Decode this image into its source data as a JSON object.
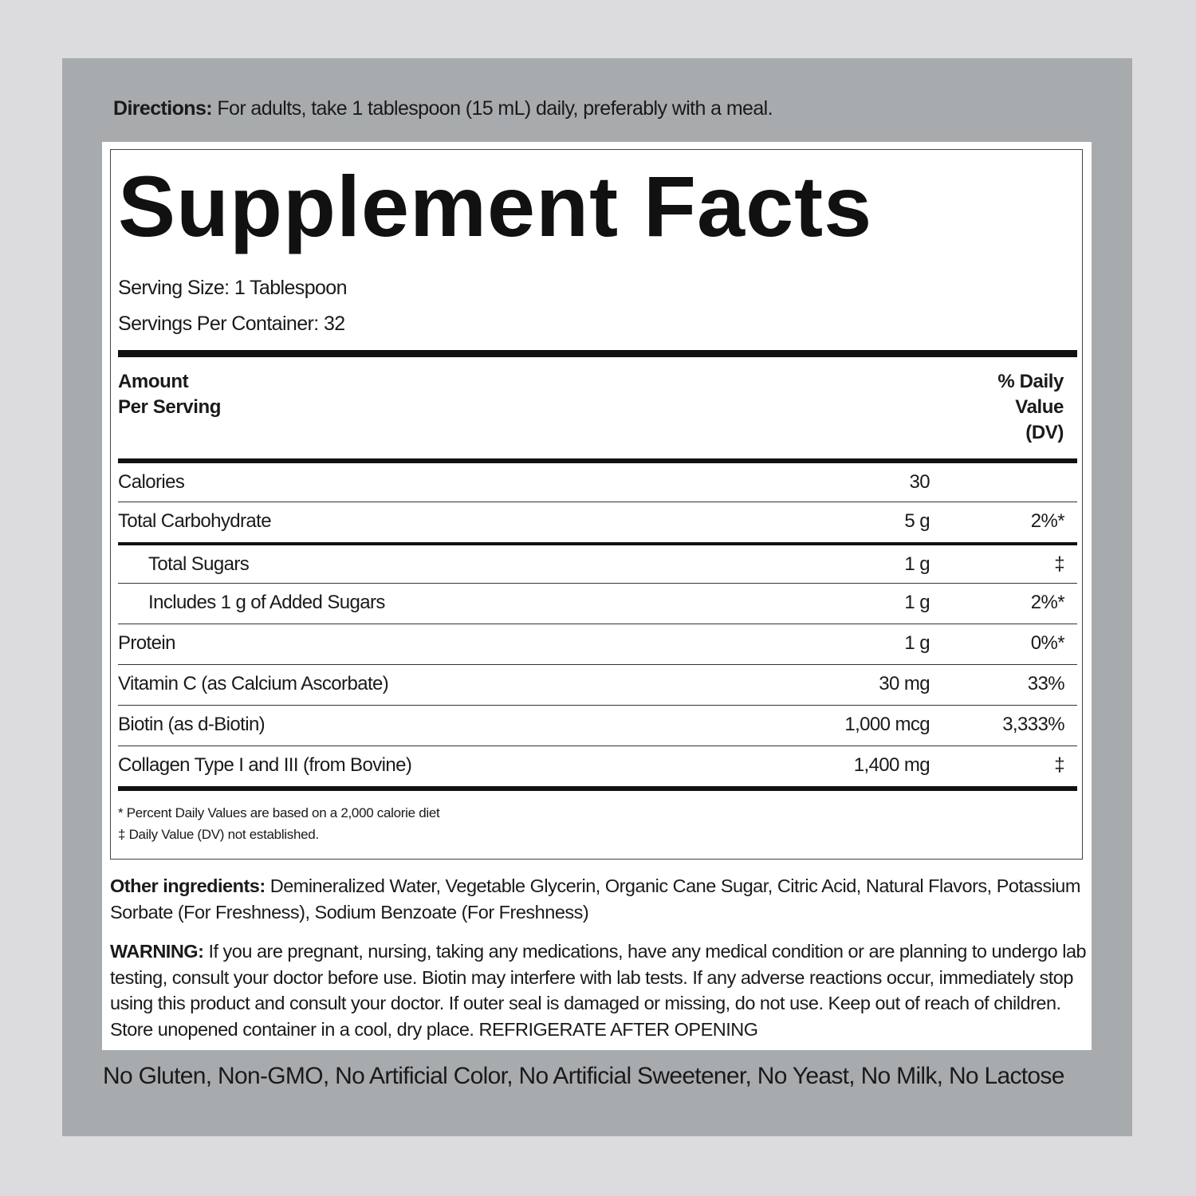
{
  "directions": {
    "label": "Directions:",
    "text": "For adults, take 1 tablespoon (15 mL) daily, preferably with a meal."
  },
  "facts": {
    "title": "Supplement Facts",
    "serving_size": "Serving Size: 1 Tablespoon",
    "servings_per_container": "Servings Per Container: 32",
    "header": {
      "amount": [
        "Amount",
        "Per Serving"
      ],
      "daily_value": [
        "% Daily",
        "Value",
        "(DV)"
      ]
    },
    "rows": [
      {
        "name": "Calories",
        "amount": "30"
      },
      {
        "name": "Total Carbohydrate",
        "amount": "5 g",
        "dv": "2%*"
      },
      {
        "name": "Total Sugars",
        "amount": "1 g",
        "dv": "‡"
      },
      {
        "name": "Includes 1 g of Added Sugars",
        "amount": "1 g",
        "dv": "2%*"
      },
      {
        "name": "Protein",
        "amount": "1 g",
        "dv": "0%*"
      },
      {
        "name": "Vitamin C (as Calcium Ascorbate)",
        "amount": "30 mg",
        "dv": "33%"
      },
      {
        "name": "Biotin (as d-Biotin)",
        "amount": "1,000 mcg",
        "dv": "3,333%"
      },
      {
        "name": "Collagen Type I and III (from Bovine)",
        "amount": "1,400 mg",
        "dv": "‡"
      }
    ],
    "footnotes": [
      "* Percent Daily Values are based on a 2,000 calorie diet",
      "‡ Daily Value (DV) not established."
    ]
  },
  "other_ingredients": {
    "label": "Other ingredients:",
    "text": "Demineralized Water, Vegetable Glycerin, Organic Cane Sugar, Citric Acid, Natural Flavors, Potassium Sorbate (For Freshness), Sodium Benzoate (For Freshness)"
  },
  "warning": {
    "label": "WARNING:",
    "text": "If you are pregnant, nursing, taking any medications, have any medical condition or are planning to undergo lab testing, consult your doctor before use. Biotin may interfere with lab tests. If any adverse reactions occur, immediately stop using this product and consult your doctor. If outer seal is damaged or missing, do not use. Keep out of reach of children. Store unopened container in a cool, dry place. REFRIGERATE AFTER OPENING"
  },
  "free_from": "No Gluten, Non-GMO, No Artificial Color, No Artificial Sweetener, No Yeast, No Milk, No Lactose"
}
